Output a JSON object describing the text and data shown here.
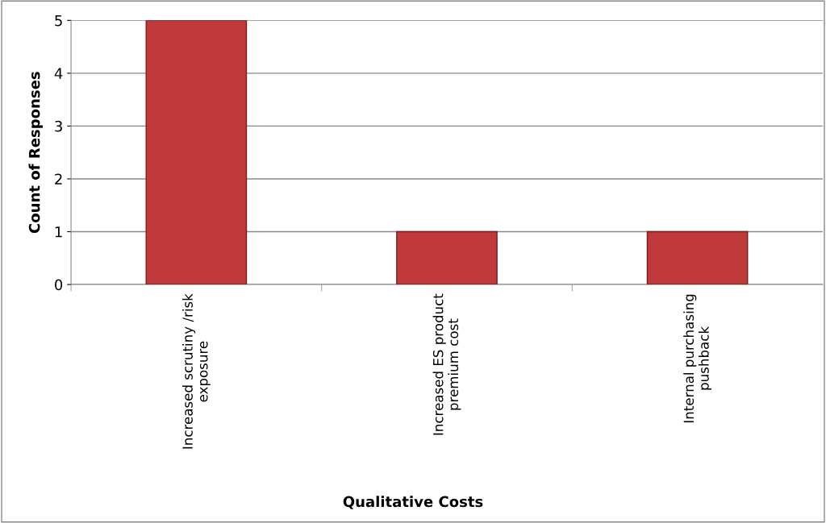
{
  "chart_data": {
    "type": "bar",
    "categories": [
      "Increased scrutiny /risk\nexposure",
      "Increased ES product\npremium cost",
      "Internal purchasing\npushback"
    ],
    "values": [
      5,
      1,
      1
    ],
    "color": "#c0393b",
    "xlabel": "Qualitative Costs",
    "ylabel": "Count of Responses",
    "ylim": [
      0,
      5
    ],
    "yticks": [
      0,
      1,
      2,
      3,
      4,
      5
    ],
    "grid": "y",
    "legend": false
  }
}
